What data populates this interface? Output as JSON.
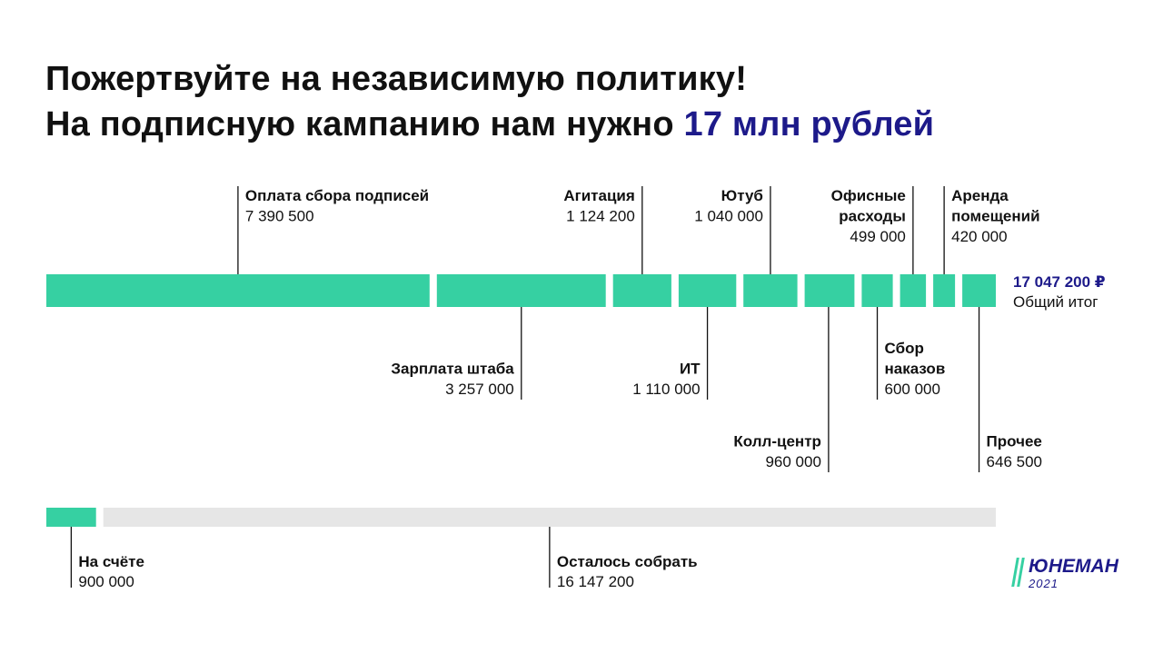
{
  "header": {
    "line1": "Пожертвуйте на независимую политику!",
    "line2_prefix": "На подписную кампанию нам нужно ",
    "line2_accent": "17 млн рублей"
  },
  "colors": {
    "segment": "#36d0a2",
    "remaining": "#e6e6e6",
    "accent": "#1d1a8a",
    "text": "#111111"
  },
  "chart_data": [
    {
      "type": "bar",
      "orientation": "horizontal-stacked",
      "unit": "₽",
      "categories": [
        "Оплата сбора подписей",
        "Зарплата штаба",
        "Агитация",
        "ИТ",
        "Ютуб",
        "Колл-центр",
        "Сбор наказов",
        "Офисные расходы",
        "Аренда помещений",
        "Прочее"
      ],
      "values": [
        7390500,
        3257000,
        1124200,
        1110000,
        1040000,
        960000,
        600000,
        499000,
        420000,
        646500
      ],
      "value_labels": [
        "7 390 500",
        "3 257 000",
        "1 124 200",
        "1 110 000",
        "1 040 000",
        "960 000",
        "600 000",
        "499 000",
        "420 000",
        "646 500"
      ],
      "label_lines": [
        [
          "Оплата сбора подписей"
        ],
        [
          "Зарплата штаба"
        ],
        [
          "Агитация"
        ],
        [
          "ИТ"
        ],
        [
          "Ютуб"
        ],
        [
          "Колл-центр"
        ],
        [
          "Сбор",
          "наказов"
        ],
        [
          "Офисные",
          "расходы"
        ],
        [
          "Аренда",
          "помещений"
        ],
        [
          "Прочее"
        ]
      ],
      "total_value_label": "17 047 200 ₽",
      "total_label": "Общий итог"
    },
    {
      "type": "bar",
      "orientation": "horizontal-stacked",
      "unit": "₽",
      "categories": [
        "На счёте",
        "Осталось собрать"
      ],
      "values": [
        900000,
        16147200
      ],
      "value_labels": [
        "900 000",
        "16 147 200"
      ]
    }
  ],
  "logo": {
    "name": "ЮНЕМАН",
    "year": "2021"
  }
}
